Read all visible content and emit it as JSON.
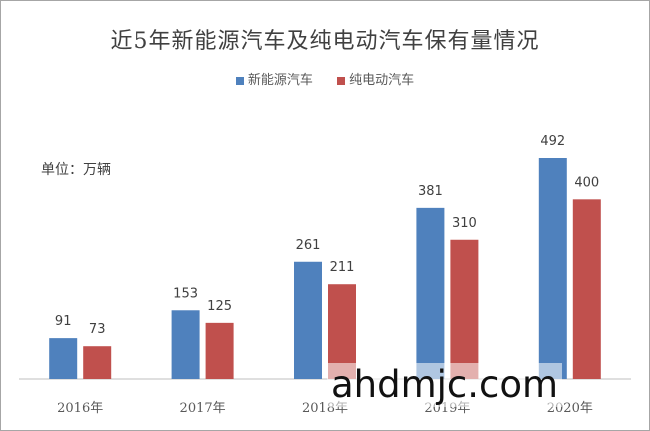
{
  "colors": {
    "new_energy": "#4f81bd",
    "electric": "#c0504d",
    "axis": "#bfbfbf"
  },
  "unit_note": "单位：万辆",
  "watermark": "ahdmjc.com",
  "chart_data": {
    "type": "bar",
    "title": "近5年新能源汽车及纯电动汽车保有量情况",
    "categories": [
      "2016年",
      "2017年",
      "2018年",
      "2019年",
      "2020年"
    ],
    "series": [
      {
        "name": "新能源汽车",
        "values": [
          91,
          153,
          261,
          381,
          492
        ]
      },
      {
        "name": "纯电动汽车",
        "values": [
          73,
          125,
          211,
          310,
          400
        ]
      }
    ],
    "ylim": [
      0,
      492
    ],
    "data_labels": true,
    "grid": false,
    "legend": "top-center"
  }
}
